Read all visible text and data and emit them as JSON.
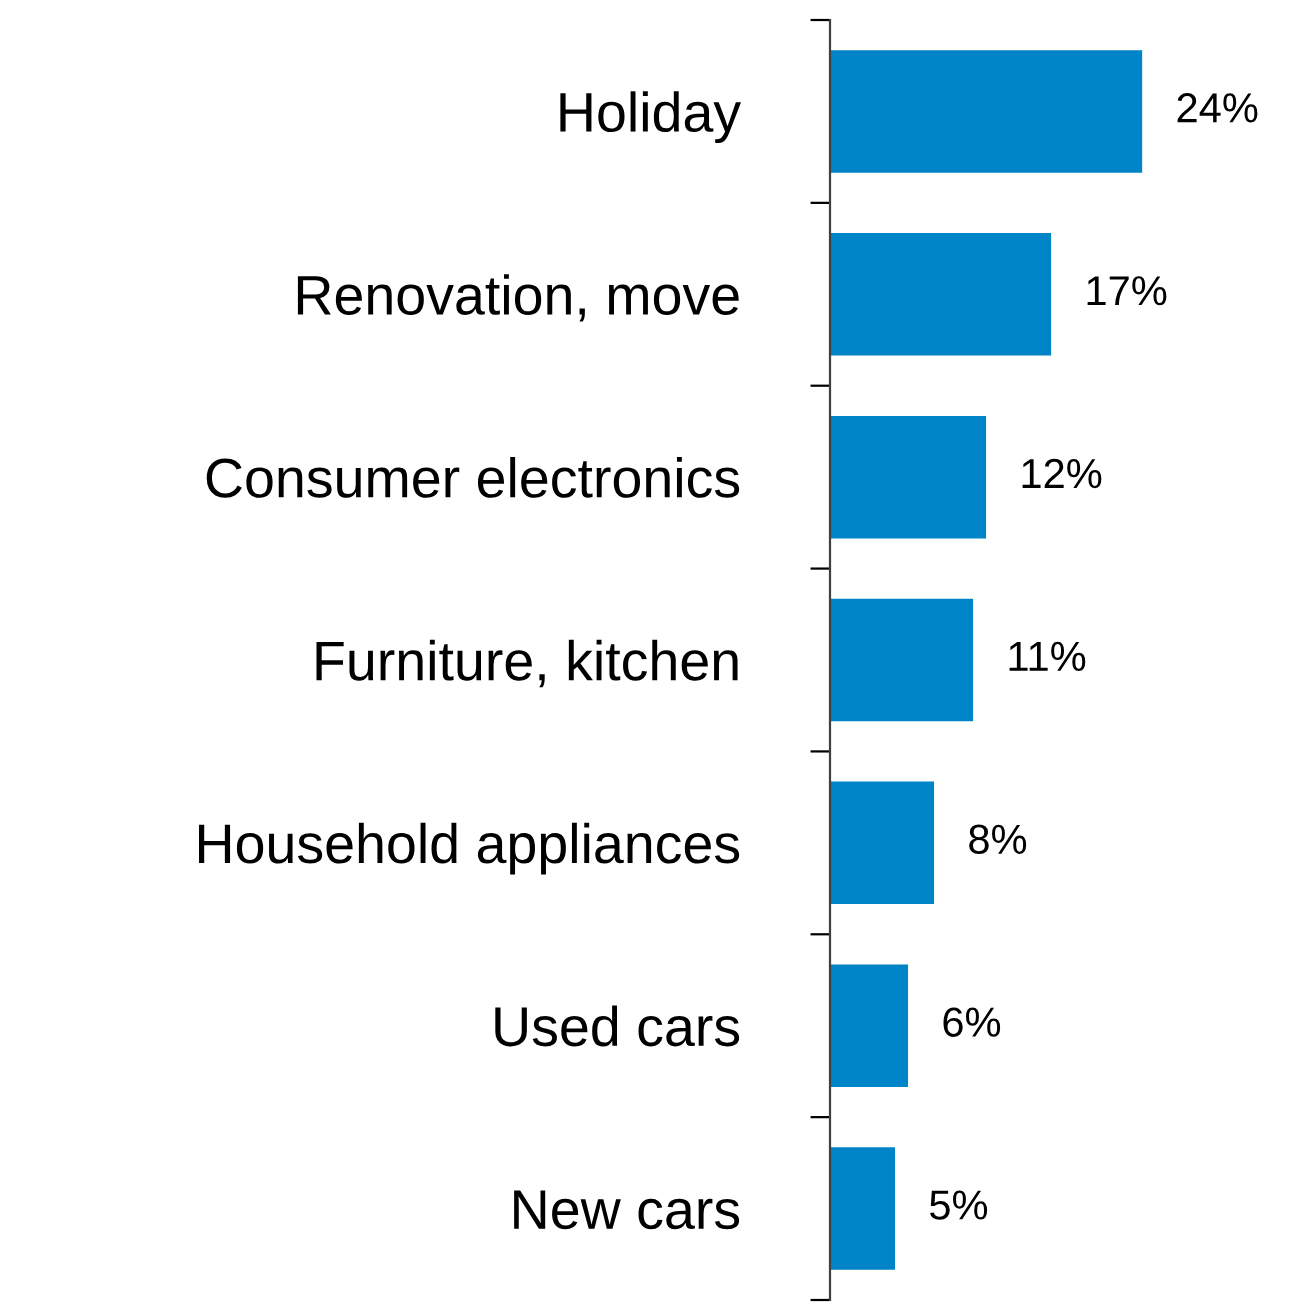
{
  "chart_data": {
    "type": "bar",
    "orientation": "horizontal",
    "categories": [
      "Holiday",
      "Renovation, move",
      "Consumer electronics",
      "Furniture, kitchen",
      "Household appliances",
      "Used cars",
      "New cars"
    ],
    "values": [
      24,
      17,
      12,
      11,
      8,
      6,
      5
    ],
    "value_labels": [
      "24%",
      "17%",
      "12%",
      "11%",
      "8%",
      "6%",
      "5%"
    ],
    "color": "#0084c8",
    "tick_labels": "y",
    "grid": false,
    "legend": false
  }
}
